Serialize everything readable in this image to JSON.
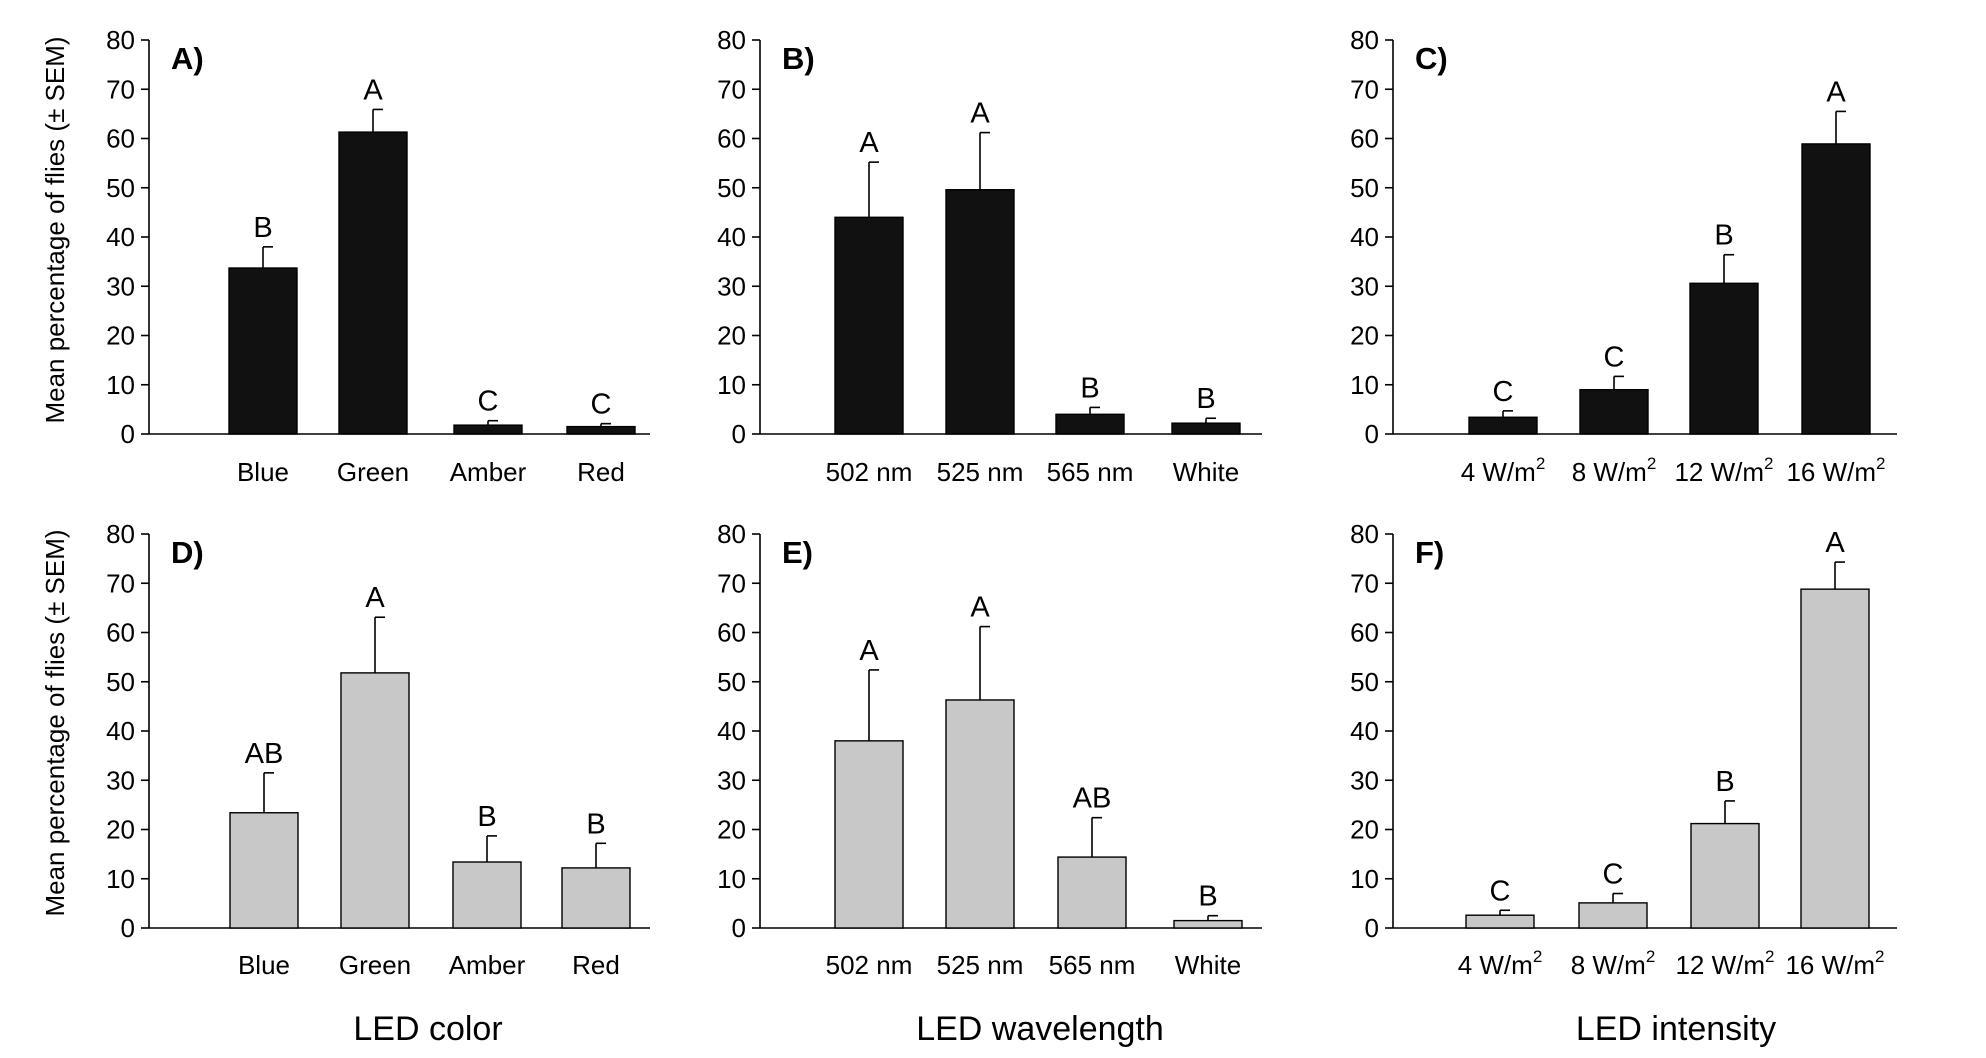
{
  "ylabel": "Mean percentage of flies (± SEM)",
  "xlabels": {
    "color": "LED color",
    "wavelength": "LED wavelength",
    "intensity": "LED intensity"
  },
  "colors": {
    "dark_bar": "#111111",
    "light_bar": "#c8c8c8",
    "axis": "#000000"
  },
  "chart_data": [
    {
      "id": "A",
      "label": "A)",
      "type": "bar",
      "unit_sup": false,
      "categories": [
        "Blue",
        "Green",
        "Amber",
        "Red"
      ],
      "values": [
        33.7,
        61.3,
        1.8,
        1.5
      ],
      "errors": [
        4.3,
        4.6,
        0.9,
        0.6
      ],
      "letters": [
        "B",
        "A",
        "C",
        "C"
      ],
      "ylim": [
        0,
        80
      ],
      "yticks": [
        0,
        10,
        20,
        30,
        40,
        50,
        60,
        70,
        80
      ],
      "color": "#111111"
    },
    {
      "id": "B",
      "label": "B)",
      "type": "bar",
      "unit_sup": false,
      "categories": [
        "502 nm",
        "525 nm",
        "565 nm",
        "White"
      ],
      "values": [
        44.0,
        49.6,
        4.0,
        2.2
      ],
      "errors": [
        11.2,
        11.6,
        1.4,
        1.0
      ],
      "letters": [
        "A",
        "A",
        "B",
        "B"
      ],
      "ylim": [
        0,
        80
      ],
      "yticks": [
        0,
        10,
        20,
        30,
        40,
        50,
        60,
        70,
        80
      ],
      "color": "#111111"
    },
    {
      "id": "C",
      "label": "C)",
      "type": "bar",
      "unit_sup": true,
      "categories": [
        "4 W/m",
        "8 W/m",
        "12 W/m",
        "16 W/m"
      ],
      "superscript": "2",
      "values": [
        3.4,
        9.0,
        30.6,
        58.9
      ],
      "errors": [
        1.3,
        2.7,
        5.8,
        6.6
      ],
      "letters": [
        "C",
        "C",
        "B",
        "A"
      ],
      "ylim": [
        0,
        80
      ],
      "yticks": [
        0,
        10,
        20,
        30,
        40,
        50,
        60,
        70,
        80
      ],
      "color": "#111111"
    },
    {
      "id": "D",
      "label": "D)",
      "type": "bar",
      "unit_sup": false,
      "categories": [
        "Blue",
        "Green",
        "Amber",
        "Red"
      ],
      "values": [
        23.4,
        51.8,
        13.4,
        12.2
      ],
      "errors": [
        8.1,
        11.3,
        5.3,
        5.0
      ],
      "letters": [
        "AB",
        "A",
        "B",
        "B"
      ],
      "ylim": [
        0,
        80
      ],
      "yticks": [
        0,
        10,
        20,
        30,
        40,
        50,
        60,
        70,
        80
      ],
      "color": "#c8c8c8"
    },
    {
      "id": "E",
      "label": "E)",
      "type": "bar",
      "unit_sup": false,
      "categories": [
        "502 nm",
        "525 nm",
        "565 nm",
        "White"
      ],
      "values": [
        38.0,
        46.3,
        14.4,
        1.5
      ],
      "errors": [
        14.4,
        14.9,
        8.0,
        1.0
      ],
      "letters": [
        "A",
        "A",
        "AB",
        "B"
      ],
      "ylim": [
        0,
        80
      ],
      "yticks": [
        0,
        10,
        20,
        30,
        40,
        50,
        60,
        70,
        80
      ],
      "color": "#c8c8c8"
    },
    {
      "id": "F",
      "label": "F)",
      "type": "bar",
      "unit_sup": true,
      "categories": [
        "4 W/m",
        "8 W/m",
        "12 W/m",
        "16 W/m"
      ],
      "superscript": "2",
      "values": [
        2.6,
        5.1,
        21.2,
        68.8
      ],
      "errors": [
        1.0,
        1.9,
        4.6,
        5.5
      ],
      "letters": [
        "C",
        "C",
        "B",
        "A"
      ],
      "ylim": [
        0,
        80
      ],
      "yticks": [
        0,
        10,
        20,
        30,
        40,
        50,
        60,
        70,
        80
      ],
      "color": "#c8c8c8"
    }
  ]
}
